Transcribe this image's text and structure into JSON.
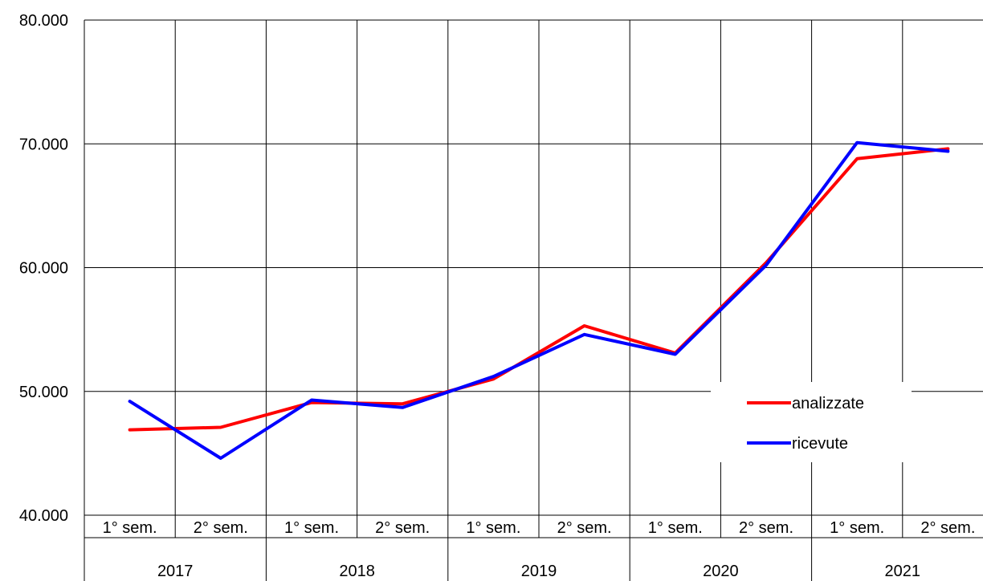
{
  "chart_data": {
    "type": "line",
    "title": "",
    "xlabel": "",
    "ylabel": "",
    "ylim": [
      40000,
      80000
    ],
    "yticks": [
      {
        "value": 40000,
        "label": "40.000"
      },
      {
        "value": 50000,
        "label": "50.000"
      },
      {
        "value": 60000,
        "label": "60.000"
      },
      {
        "value": 70000,
        "label": "70.000"
      },
      {
        "value": 80000,
        "label": "80.000"
      }
    ],
    "categories": [
      "1° sem.",
      "2° sem.",
      "1° sem.",
      "2° sem.",
      "1° sem.",
      "2° sem.",
      "1° sem.",
      "2° sem.",
      "1° sem.",
      "2° sem."
    ],
    "groups": [
      "2017",
      "2018",
      "2019",
      "2020",
      "2021"
    ],
    "series": [
      {
        "name": "analizzate",
        "color": "#ff0000",
        "values": [
          46900,
          47100,
          49100,
          49000,
          51000,
          55300,
          53100,
          60400,
          68800,
          69600
        ]
      },
      {
        "name": "ricevute",
        "color": "#0000ff",
        "values": [
          49200,
          44600,
          49300,
          48700,
          51200,
          54600,
          53000,
          60200,
          70100,
          69400
        ]
      }
    ],
    "grid": true,
    "legend_position": "right"
  }
}
